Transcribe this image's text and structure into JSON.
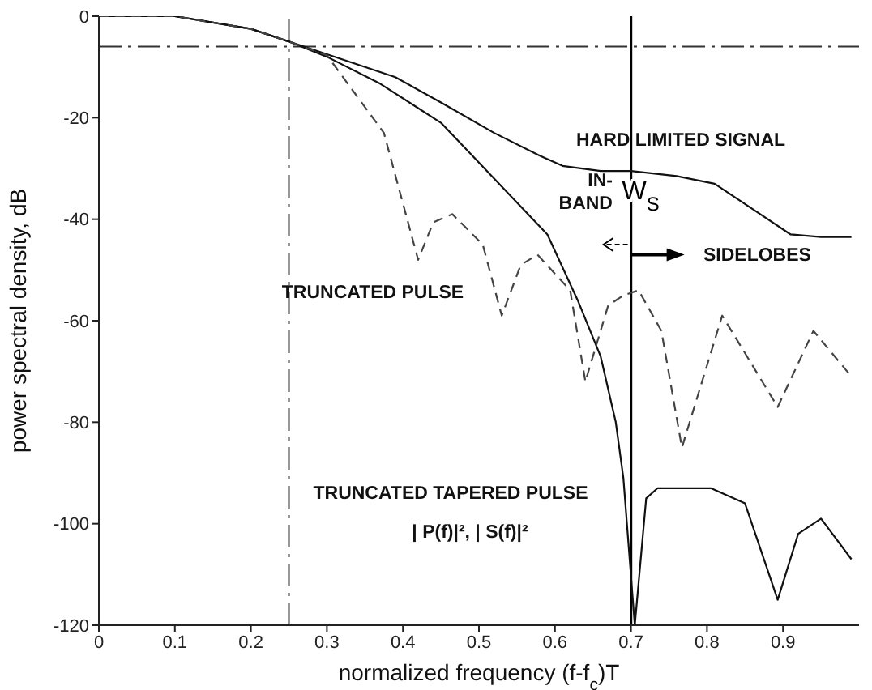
{
  "chart_data": {
    "type": "line",
    "xlabel": "normalized frequency  (f-f$_{c}$)T",
    "ylabel": "power spectral density, dB",
    "xlim": [
      0,
      1
    ],
    "xticks": [
      0,
      0.1,
      0.2,
      0.3,
      0.4,
      0.5,
      0.6,
      0.7,
      0.8,
      0.9
    ],
    "ylim": [
      -120,
      0
    ],
    "yticks": [
      0,
      -20,
      -40,
      -60,
      -80,
      -100,
      -120
    ],
    "grid": false,
    "legend": false,
    "marker": "none",
    "series": [
      {
        "color": "#111111",
        "line_style": "solid",
        "x": [
          0,
          0.1,
          0.2,
          0.25,
          0.3,
          0.39,
          0.45,
          0.52,
          0.58,
          0.61,
          0.66,
          0.7,
          0.76,
          0.81,
          0.86,
          0.91,
          0.95,
          0.99
        ],
        "values": [
          0,
          0,
          -2.5,
          -5,
          -7.5,
          -12,
          -17,
          -23,
          -27.5,
          -29.5,
          -30.5,
          -30.5,
          -31.5,
          -33,
          -38,
          -43,
          -43.5,
          -43.5
        ]
      },
      {
        "color": "#111111",
        "line_style": "solid",
        "x": [
          0,
          0.1,
          0.2,
          0.25,
          0.3,
          0.37,
          0.45,
          0.52,
          0.59,
          0.63,
          0.66,
          0.68,
          0.69,
          0.705,
          0.72,
          0.735,
          0.805,
          0.85,
          0.893,
          0.92,
          0.95,
          0.99
        ],
        "values": [
          0,
          0,
          -2.5,
          -5,
          -8,
          -13.3,
          -21,
          -32,
          -43,
          -56,
          -67,
          -80,
          -91,
          -120,
          -95,
          -93,
          -93,
          -96,
          -115,
          -102,
          -99,
          -107
        ]
      },
      {
        "color": "#444444",
        "line_style": "dashed",
        "x": [
          0,
          0.1,
          0.2,
          0.25,
          0.3,
          0.375,
          0.42,
          0.44,
          0.465,
          0.505,
          0.53,
          0.555,
          0.577,
          0.62,
          0.64,
          0.67,
          0.69,
          0.71,
          0.74,
          0.767,
          0.82,
          0.893,
          0.94,
          0.99
        ],
        "values": [
          0,
          0,
          -2.5,
          -5,
          -7.7,
          -23,
          -48,
          -40.6,
          -39,
          -45,
          -59,
          -49,
          -47,
          -54,
          -72,
          -57,
          -55,
          -54,
          -62,
          -85,
          -59,
          -77,
          -62,
          -71
        ]
      }
    ],
    "ref_lines": [
      {
        "axis": "x",
        "value": 0.25,
        "line_style": "dashed",
        "color": "#333333"
      },
      {
        "axis": "y",
        "value": -6,
        "line_style": "dashed",
        "color": "#333333"
      },
      {
        "axis": "x",
        "value": 0.7,
        "line_style": "solid",
        "color": "#000000",
        "label": "W$_{S}$"
      }
    ],
    "annotations": [
      "HARD LIMITED SIGNAL",
      "IN-BAND",
      "SIDELOBES",
      "TRUNCATED PULSE",
      "TRUNCATED TAPERED PULSE",
      "| P(f)|², | S(f)|²"
    ]
  }
}
